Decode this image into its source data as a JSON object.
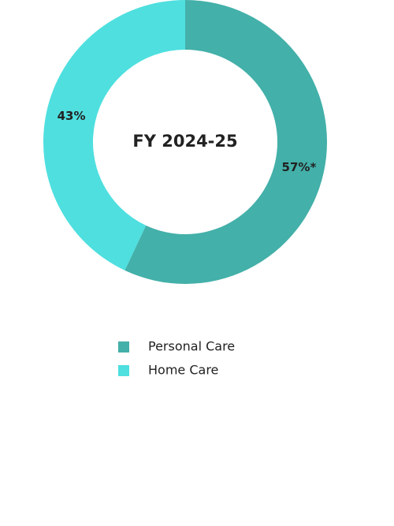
{
  "chart_data": {
    "type": "donut",
    "title": "FY 2024-25",
    "categories": [
      "Personal Care",
      "Home Care"
    ],
    "values": [
      57,
      43
    ],
    "value_labels": [
      "57%*",
      "43%"
    ],
    "colors": [
      "#43b0a9",
      "#4fdfdf"
    ],
    "legend": "bottom"
  }
}
